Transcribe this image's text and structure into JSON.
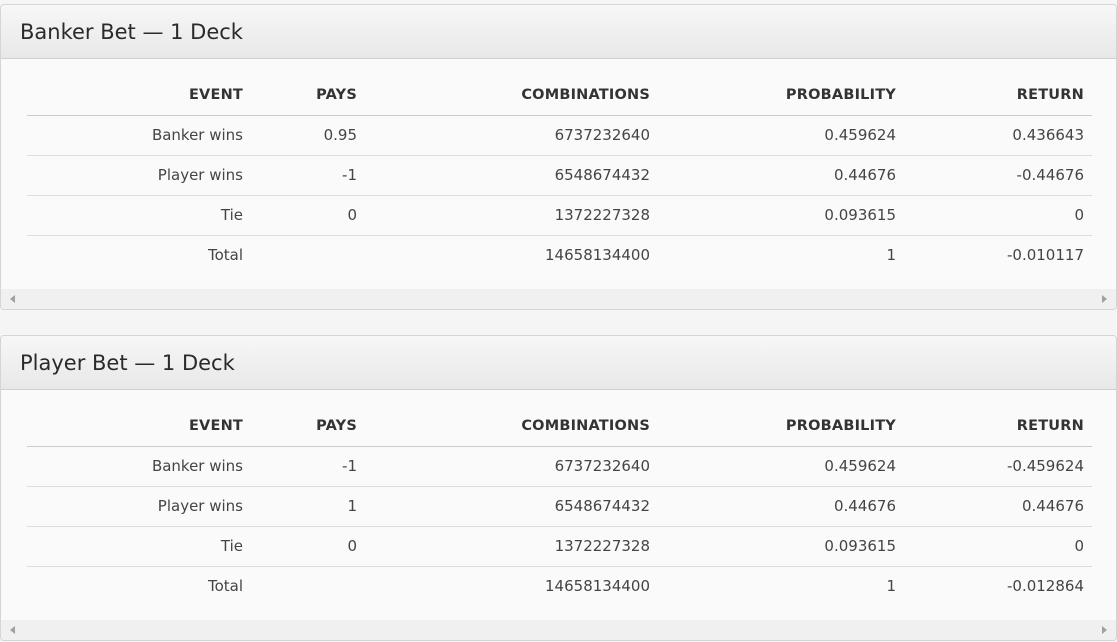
{
  "columns": [
    "EVENT",
    "PAYS",
    "COMBINATIONS",
    "PROBABILITY",
    "RETURN"
  ],
  "tables": [
    {
      "title": "Banker Bet — 1 Deck",
      "rows": [
        [
          "Banker wins",
          "0.95",
          "6737232640",
          "0.459624",
          "0.436643"
        ],
        [
          "Player wins",
          "-1",
          "6548674432",
          "0.44676",
          "-0.44676"
        ],
        [
          "Tie",
          "0",
          "1372227328",
          "0.093615",
          "0"
        ],
        [
          "Total",
          "",
          "14658134400",
          "1",
          "-0.010117"
        ]
      ]
    },
    {
      "title": "Player Bet — 1 Deck",
      "rows": [
        [
          "Banker wins",
          "-1",
          "6737232640",
          "0.459624",
          "-0.459624"
        ],
        [
          "Player wins",
          "1",
          "6548674432",
          "0.44676",
          "0.44676"
        ],
        [
          "Tie",
          "0",
          "1372227328",
          "0.093615",
          "0"
        ],
        [
          "Total",
          "",
          "14658134400",
          "1",
          "-0.012864"
        ]
      ]
    }
  ]
}
